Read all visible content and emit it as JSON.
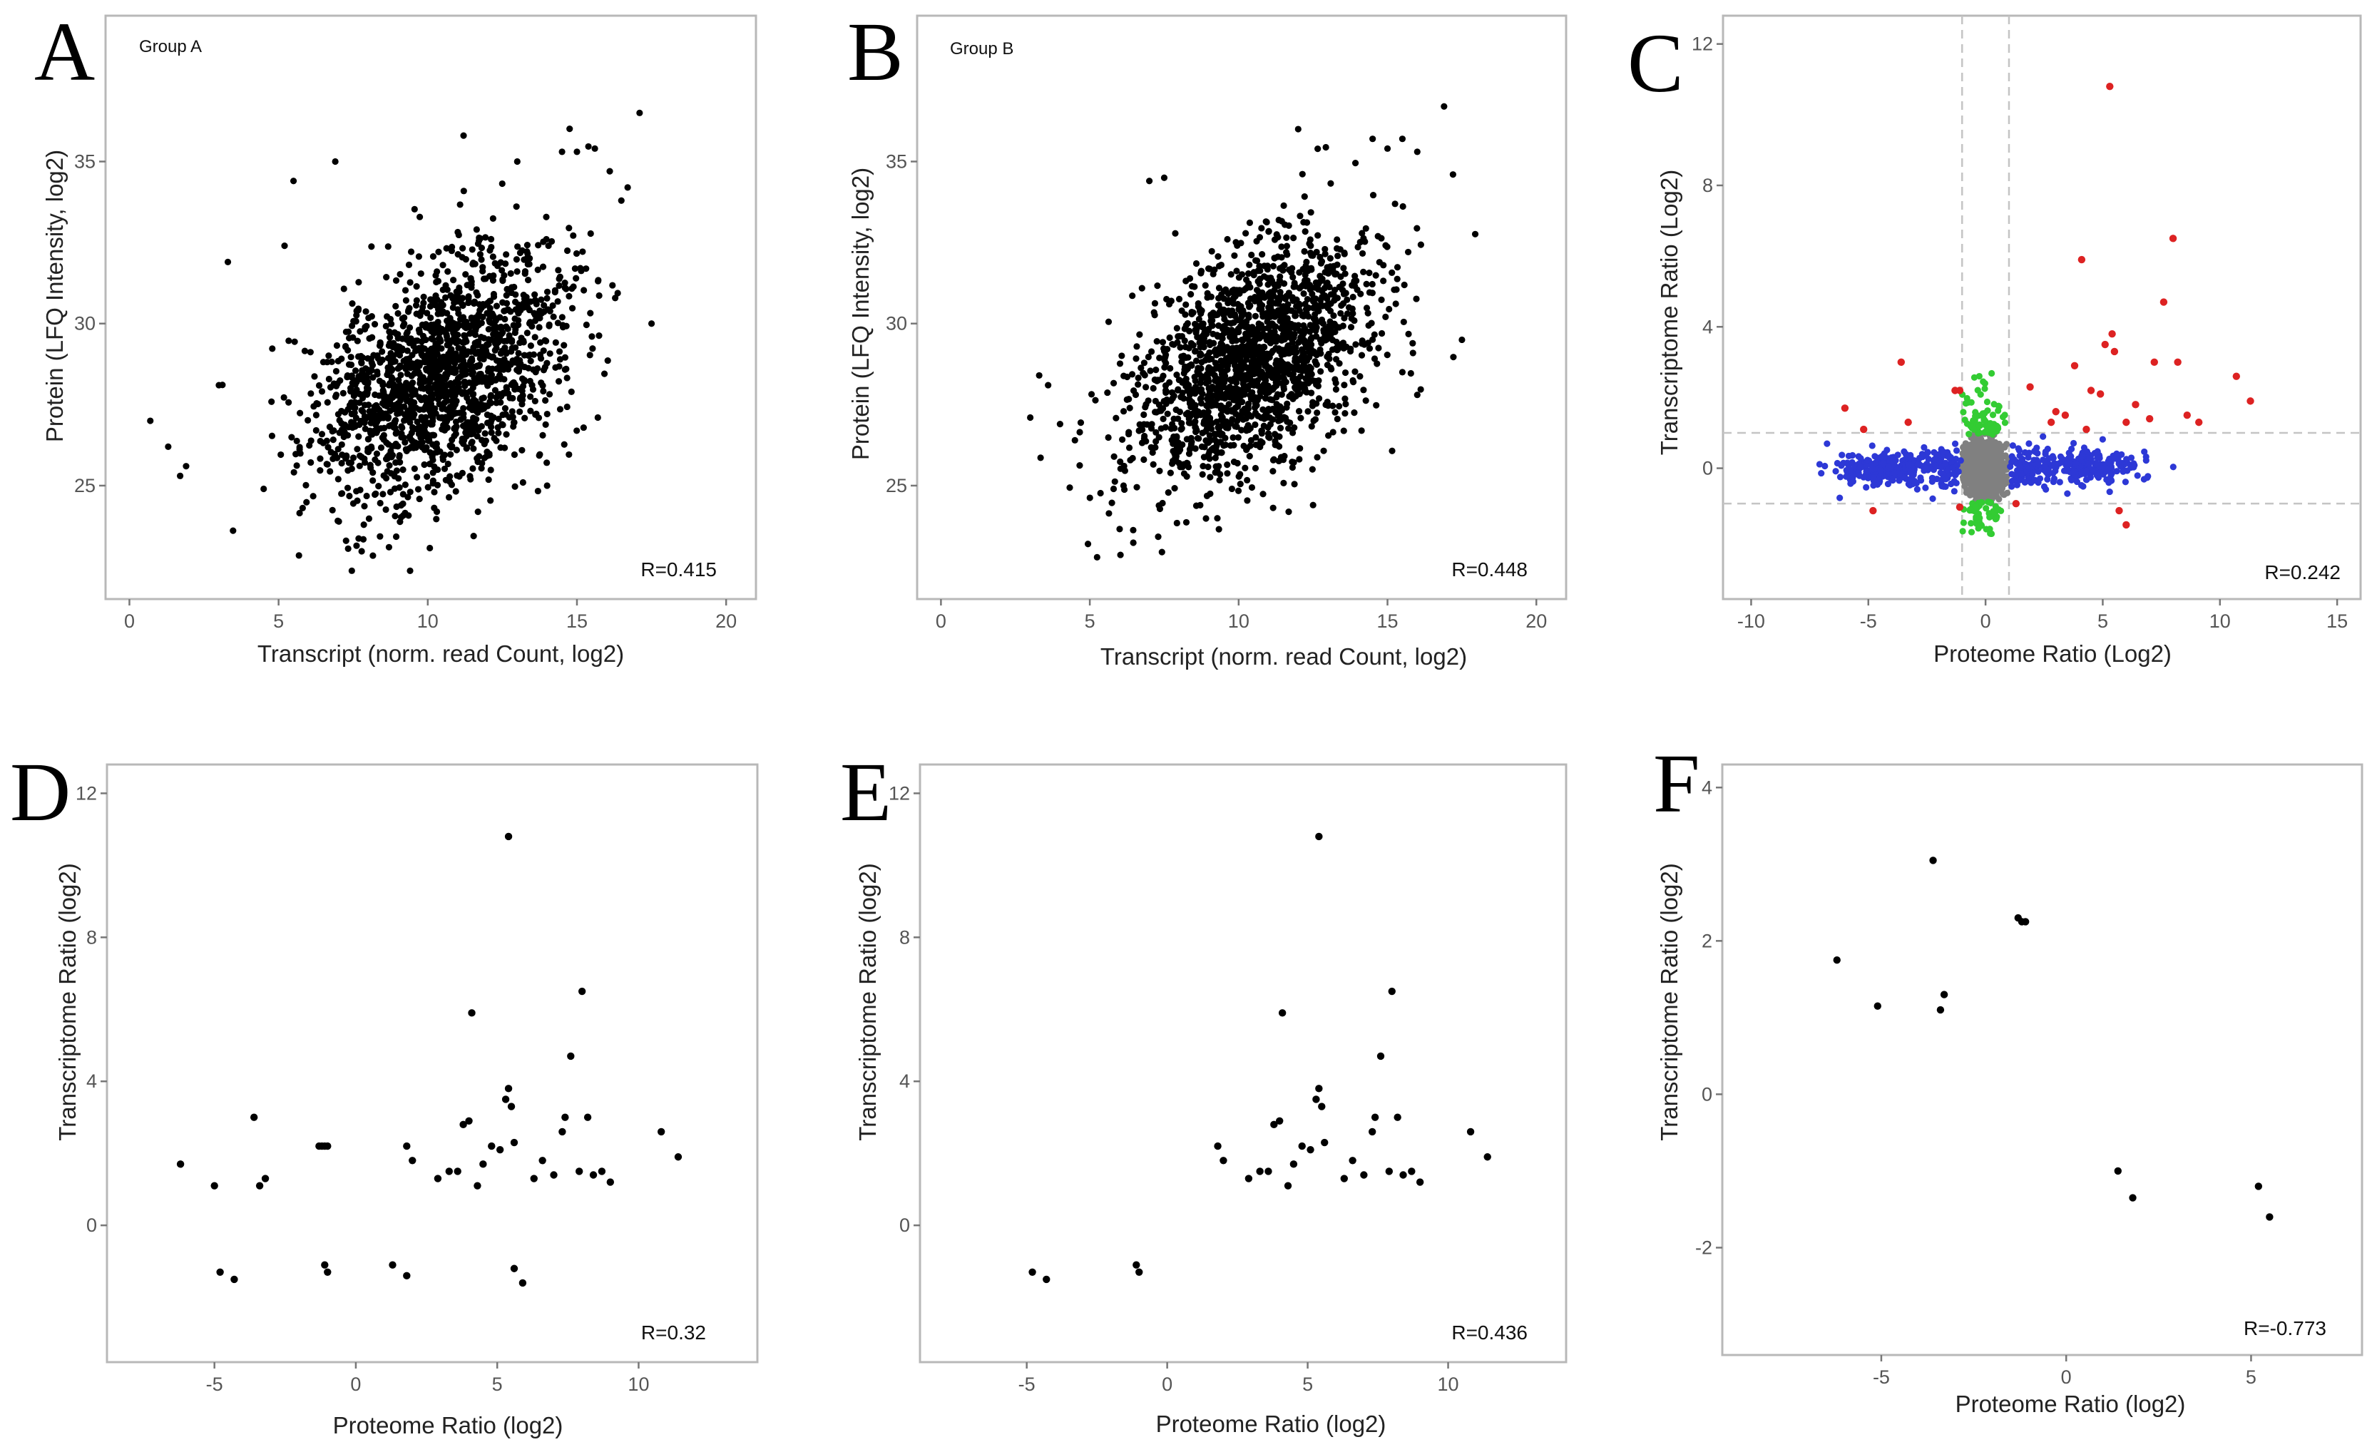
{
  "chart_data": [
    {
      "panel": "A",
      "type": "scatter",
      "annotation": "Group A",
      "xlabel": "Transcript (norm. read Count, log2)",
      "ylabel": "Protein (LFQ Intensity, log2)",
      "xlim": [
        -0.8,
        21
      ],
      "ylim": [
        21.5,
        39.5
      ],
      "xticks": [
        0,
        5,
        10,
        15,
        20
      ],
      "yticks": [
        25,
        30,
        35
      ],
      "r_label": "R=0.415",
      "cloud": {
        "n": 1700,
        "x_mean": 10.4,
        "x_sd": 2.1,
        "y_mean": 28.4,
        "y_sd": 1.9,
        "rho": 0.42,
        "seed": 11
      },
      "points": [
        [
          0.7,
          27.0
        ],
        [
          1.3,
          26.2
        ],
        [
          1.7,
          25.3
        ],
        [
          1.9,
          25.6
        ],
        [
          3.0,
          28.1
        ],
        [
          3.3,
          31.9
        ],
        [
          4.5,
          24.9
        ],
        [
          5.2,
          32.4
        ],
        [
          5.5,
          34.4
        ],
        [
          6.9,
          35.0
        ],
        [
          8.7,
          23.1
        ],
        [
          11.2,
          35.8
        ],
        [
          13.0,
          35.0
        ],
        [
          14.5,
          35.3
        ],
        [
          15.0,
          35.3
        ],
        [
          15.6,
          35.4
        ],
        [
          16.1,
          34.7
        ],
        [
          16.7,
          34.2
        ],
        [
          17.1,
          36.5
        ],
        [
          17.5,
          30.0
        ],
        [
          15.5,
          29.6
        ],
        [
          15.7,
          27.1
        ],
        [
          14.0,
          25.0
        ],
        [
          7.0,
          25.2
        ]
      ]
    },
    {
      "panel": "B",
      "type": "scatter",
      "annotation": "Group B",
      "xlabel": "Transcript (norm. read Count, log2)",
      "ylabel": "Protein (LFQ Intensity, log2)",
      "xlim": [
        -0.8,
        21
      ],
      "ylim": [
        21.5,
        39.5
      ],
      "xticks": [
        0,
        5,
        10,
        15,
        20
      ],
      "yticks": [
        25,
        30,
        35
      ],
      "r_label": "R=0.448",
      "cloud": {
        "n": 1700,
        "x_mean": 10.4,
        "x_sd": 2.0,
        "y_mean": 28.8,
        "y_sd": 1.9,
        "rho": 0.45,
        "seed": 23
      },
      "points": [
        [
          3.0,
          27.1
        ],
        [
          3.3,
          28.4
        ],
        [
          3.6,
          28.1
        ],
        [
          4.0,
          26.9
        ],
        [
          4.5,
          26.4
        ],
        [
          5.8,
          24.9
        ],
        [
          7.0,
          34.4
        ],
        [
          7.5,
          34.5
        ],
        [
          12.0,
          36.0
        ],
        [
          14.5,
          35.7
        ],
        [
          15.0,
          35.4
        ],
        [
          15.5,
          35.7
        ],
        [
          16.0,
          35.3
        ],
        [
          16.9,
          36.7
        ],
        [
          17.2,
          34.6
        ],
        [
          17.5,
          29.5
        ],
        [
          16.0,
          27.8
        ],
        [
          15.5,
          28.5
        ],
        [
          12.5,
          24.4
        ]
      ]
    },
    {
      "panel": "C",
      "type": "scatter",
      "xlabel": "Proteome Ratio (Log2)",
      "ylabel": "Transcriptome Ratio (Log2)",
      "xlim": [
        -11.2,
        16
      ],
      "ylim": [
        -3.7,
        12.8
      ],
      "xticks": [
        -10,
        -5,
        0,
        5,
        10,
        15
      ],
      "yticks": [
        0,
        4,
        8,
        12
      ],
      "guides_x": [
        -1,
        1
      ],
      "guides_y": [
        -1,
        1
      ],
      "r_label": "R=0.242",
      "colors": {
        "unchanged": "#808080",
        "transcript_only": "#33cc33",
        "protein_only": "#2d38d6",
        "both": "#dd2222"
      },
      "clusters": [
        {
          "group": "unchanged",
          "n": 1500,
          "x_mean": -0.05,
          "x_sd": 0.4,
          "y_mean": 0.0,
          "y_sd": 0.35,
          "x_range": [
            -1,
            1
          ],
          "y_range": [
            -1,
            1
          ],
          "seed": 31
        },
        {
          "group": "transcript_only",
          "n": 120,
          "x_mean": -0.1,
          "x_sd": 0.45,
          "y_mean": 0.0,
          "y_sd": 1.1,
          "x_range": [
            -1,
            1
          ],
          "y_range": [
            -1.9,
            2.9
          ],
          "seed": 37
        },
        {
          "group": "protein_only",
          "n": 260,
          "x_mean": -4.2,
          "x_sd": 1.0,
          "y_mean": 0.0,
          "y_sd": 0.25,
          "x_range": [
            -9,
            -1.1
          ],
          "y_range": [
            -1,
            1
          ],
          "seed": 41
        },
        {
          "group": "protein_only",
          "n": 230,
          "x_mean": 4.3,
          "x_sd": 1.1,
          "y_mean": 0.0,
          "y_sd": 0.25,
          "x_range": [
            1.1,
            12.5
          ],
          "y_range": [
            -1,
            1
          ],
          "seed": 43
        },
        {
          "group": "protein_only",
          "n": 90,
          "x_mean": 1.8,
          "x_sd": 0.5,
          "y_mean": 0.0,
          "y_sd": 0.3,
          "x_range": [
            1.05,
            3.2
          ],
          "y_range": [
            -1,
            1
          ],
          "seed": 47
        },
        {
          "group": "protein_only",
          "n": 80,
          "x_mean": -1.8,
          "x_sd": 0.5,
          "y_mean": 0.0,
          "y_sd": 0.3,
          "x_range": [
            -3.2,
            -1.05
          ],
          "y_range": [
            -1,
            1
          ],
          "seed": 53
        }
      ],
      "points": [
        {
          "group": "both",
          "x": 5.3,
          "y": 10.8
        },
        {
          "group": "both",
          "x": 4.1,
          "y": 5.9
        },
        {
          "group": "both",
          "x": 8.0,
          "y": 6.5
        },
        {
          "group": "both",
          "x": 7.6,
          "y": 4.7
        },
        {
          "group": "both",
          "x": 5.4,
          "y": 3.8
        },
        {
          "group": "both",
          "x": 5.1,
          "y": 3.5
        },
        {
          "group": "both",
          "x": 5.5,
          "y": 3.3
        },
        {
          "group": "both",
          "x": 3.8,
          "y": 2.9
        },
        {
          "group": "both",
          "x": 7.2,
          "y": 3.0
        },
        {
          "group": "both",
          "x": 8.2,
          "y": 3.0
        },
        {
          "group": "both",
          "x": 10.7,
          "y": 2.6
        },
        {
          "group": "both",
          "x": 11.3,
          "y": 1.9
        },
        {
          "group": "both",
          "x": 1.9,
          "y": 2.3
        },
        {
          "group": "both",
          "x": 4.5,
          "y": 2.2
        },
        {
          "group": "both",
          "x": 4.9,
          "y": 2.1
        },
        {
          "group": "both",
          "x": 6.4,
          "y": 1.8
        },
        {
          "group": "both",
          "x": 2.8,
          "y": 1.3
        },
        {
          "group": "both",
          "x": 3.4,
          "y": 1.5
        },
        {
          "group": "both",
          "x": 4.3,
          "y": 1.1
        },
        {
          "group": "both",
          "x": 6.0,
          "y": 1.3
        },
        {
          "group": "both",
          "x": 7.0,
          "y": 1.4
        },
        {
          "group": "both",
          "x": 8.6,
          "y": 1.5
        },
        {
          "group": "both",
          "x": 9.1,
          "y": 1.3
        },
        {
          "group": "both",
          "x": 3.0,
          "y": 1.6
        },
        {
          "group": "both",
          "x": -3.6,
          "y": 3.0
        },
        {
          "group": "both",
          "x": -6.0,
          "y": 1.7
        },
        {
          "group": "both",
          "x": -5.2,
          "y": 1.1
        },
        {
          "group": "both",
          "x": -3.3,
          "y": 1.3
        },
        {
          "group": "both",
          "x": -1.3,
          "y": 2.2
        },
        {
          "group": "both",
          "x": -1.1,
          "y": 2.2
        },
        {
          "group": "both",
          "x": -4.8,
          "y": -1.2
        },
        {
          "group": "both",
          "x": 1.3,
          "y": -1.0
        },
        {
          "group": "both",
          "x": 5.7,
          "y": -1.2
        },
        {
          "group": "both",
          "x": 6.0,
          "y": -1.6
        },
        {
          "group": "both",
          "x": -1.1,
          "y": -1.1
        }
      ]
    },
    {
      "panel": "D",
      "type": "scatter",
      "xlabel": "Proteome Ratio (log2)",
      "ylabel": "Transcriptome Ratio (log2)",
      "xlim": [
        -8.8,
        14.2
      ],
      "ylim": [
        -3.8,
        12.8
      ],
      "xticks": [
        -5,
        0,
        5,
        10
      ],
      "yticks": [
        0,
        4,
        8,
        12
      ],
      "r_label": "R=0.32",
      "points": [
        [
          -6.2,
          1.7
        ],
        [
          -5.0,
          1.1
        ],
        [
          -3.6,
          3.0
        ],
        [
          -3.4,
          1.1
        ],
        [
          -3.2,
          1.3
        ],
        [
          -1.3,
          2.2
        ],
        [
          -1.2,
          2.2
        ],
        [
          -1.1,
          2.2
        ],
        [
          -1.0,
          2.2
        ],
        [
          -4.8,
          -1.3
        ],
        [
          -4.3,
          -1.5
        ],
        [
          -1.1,
          -1.1
        ],
        [
          -1.0,
          -1.3
        ],
        [
          1.3,
          -1.1
        ],
        [
          1.8,
          -1.4
        ],
        [
          1.8,
          2.2
        ],
        [
          2.0,
          1.8
        ],
        [
          2.9,
          1.3
        ],
        [
          3.3,
          1.5
        ],
        [
          3.6,
          1.5
        ],
        [
          3.8,
          2.8
        ],
        [
          4.0,
          2.9
        ],
        [
          4.3,
          1.1
        ],
        [
          4.5,
          1.7
        ],
        [
          4.8,
          2.2
        ],
        [
          5.1,
          2.1
        ],
        [
          5.3,
          3.5
        ],
        [
          5.4,
          3.8
        ],
        [
          5.5,
          3.3
        ],
        [
          5.6,
          2.3
        ],
        [
          4.1,
          5.9
        ],
        [
          5.4,
          10.8
        ],
        [
          5.6,
          -1.2
        ],
        [
          5.9,
          -1.6
        ],
        [
          6.3,
          1.3
        ],
        [
          6.6,
          1.8
        ],
        [
          7.0,
          1.4
        ],
        [
          7.3,
          2.6
        ],
        [
          7.4,
          3.0
        ],
        [
          7.6,
          4.7
        ],
        [
          7.9,
          1.5
        ],
        [
          8.0,
          6.5
        ],
        [
          8.2,
          3.0
        ],
        [
          8.4,
          1.4
        ],
        [
          8.7,
          1.5
        ],
        [
          9.0,
          1.2
        ],
        [
          10.8,
          2.6
        ],
        [
          11.4,
          1.9
        ]
      ]
    },
    {
      "panel": "E",
      "type": "scatter",
      "xlabel": "Proteome Ratio (log2)",
      "ylabel": "Transcriptome Ratio (log2)",
      "xlim": [
        -8.8,
        14.2
      ],
      "ylim": [
        -3.8,
        12.8
      ],
      "xticks": [
        -5,
        0,
        5,
        10
      ],
      "yticks": [
        0,
        4,
        8,
        12
      ],
      "r_label": "R=0.436",
      "points": [
        [
          -4.8,
          -1.3
        ],
        [
          -4.3,
          -1.5
        ],
        [
          -1.1,
          -1.1
        ],
        [
          -1.0,
          -1.3
        ],
        [
          1.8,
          2.2
        ],
        [
          2.0,
          1.8
        ],
        [
          2.9,
          1.3
        ],
        [
          3.3,
          1.5
        ],
        [
          3.6,
          1.5
        ],
        [
          3.8,
          2.8
        ],
        [
          4.0,
          2.9
        ],
        [
          4.3,
          1.1
        ],
        [
          4.5,
          1.7
        ],
        [
          4.8,
          2.2
        ],
        [
          5.1,
          2.1
        ],
        [
          5.3,
          3.5
        ],
        [
          5.4,
          3.8
        ],
        [
          5.5,
          3.3
        ],
        [
          5.6,
          2.3
        ],
        [
          4.1,
          5.9
        ],
        [
          5.4,
          10.8
        ],
        [
          6.3,
          1.3
        ],
        [
          6.6,
          1.8
        ],
        [
          7.0,
          1.4
        ],
        [
          7.3,
          2.6
        ],
        [
          7.4,
          3.0
        ],
        [
          7.6,
          4.7
        ],
        [
          7.9,
          1.5
        ],
        [
          8.0,
          6.5
        ],
        [
          8.2,
          3.0
        ],
        [
          8.4,
          1.4
        ],
        [
          8.7,
          1.5
        ],
        [
          9.0,
          1.2
        ],
        [
          10.8,
          2.6
        ],
        [
          11.4,
          1.9
        ]
      ]
    },
    {
      "panel": "F",
      "type": "scatter",
      "xlabel": "Proteome Ratio (log2)",
      "ylabel": "Transcriptome Ratio (log2)",
      "xlim": [
        -9.3,
        8.0
      ],
      "ylim": [
        -3.4,
        4.3
      ],
      "xticks": [
        -5,
        0,
        5
      ],
      "yticks": [
        -2,
        0,
        2,
        4
      ],
      "r_label": "R=-0.773",
      "points": [
        [
          -6.2,
          1.75
        ],
        [
          -5.1,
          1.15
        ],
        [
          -3.6,
          3.05
        ],
        [
          -3.4,
          1.1
        ],
        [
          -3.3,
          1.3
        ],
        [
          -1.3,
          2.3
        ],
        [
          -1.2,
          2.25
        ],
        [
          -1.1,
          2.25
        ],
        [
          1.4,
          -1.0
        ],
        [
          1.8,
          -1.35
        ],
        [
          5.2,
          -1.2
        ],
        [
          5.5,
          -1.6
        ]
      ]
    }
  ]
}
